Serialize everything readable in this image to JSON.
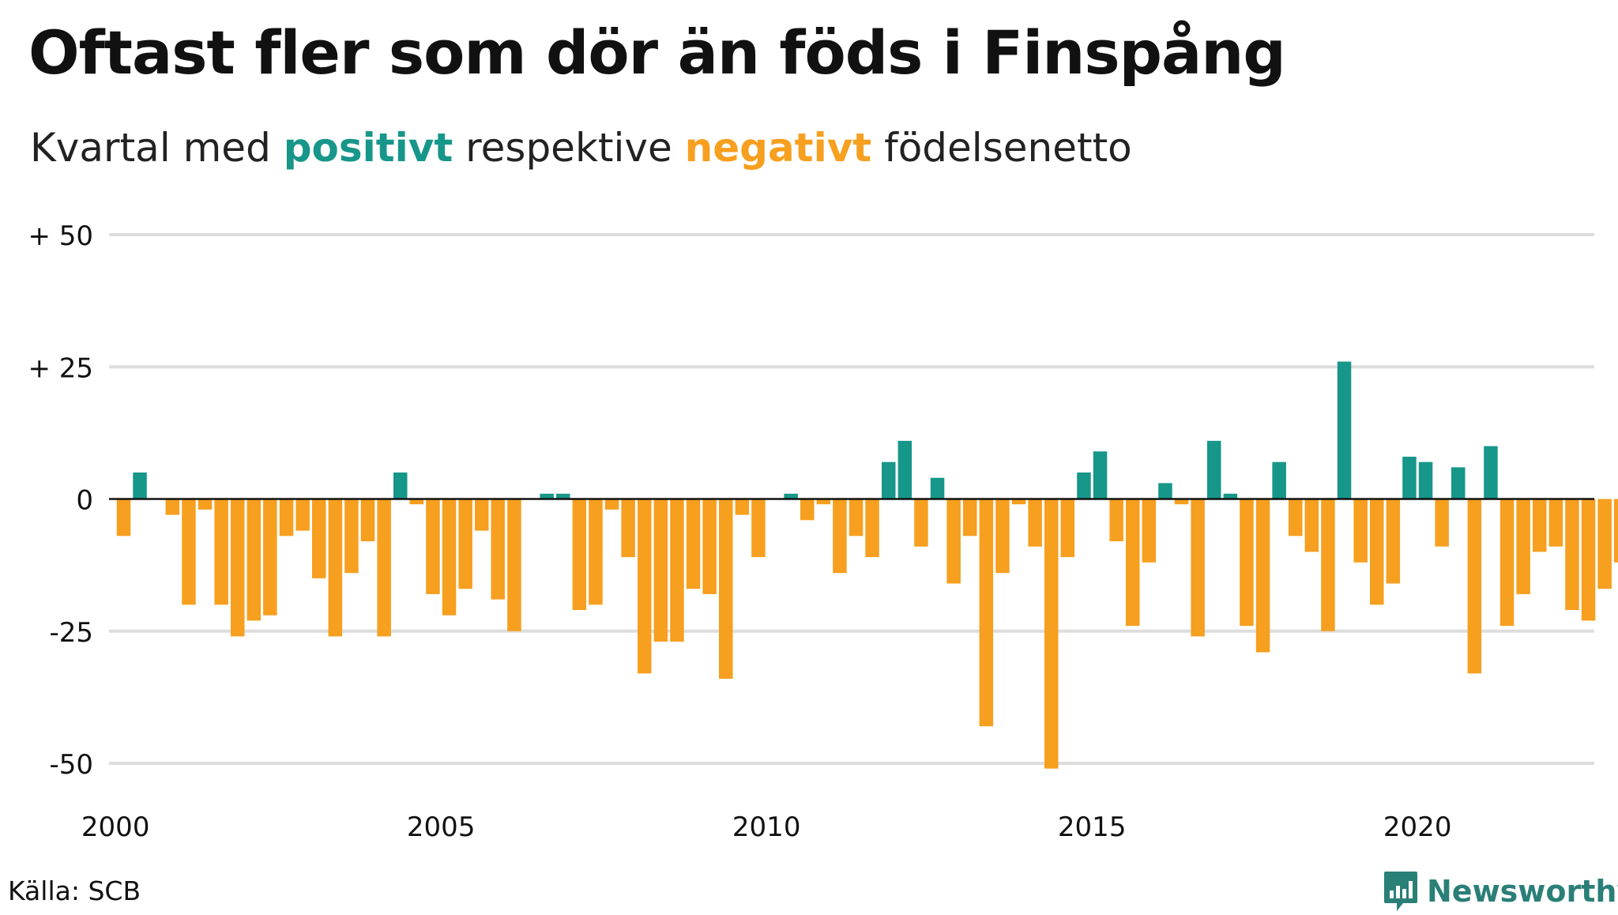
{
  "title": "Oftast fler som dör än föds i Finspång",
  "subtitle": {
    "prefix": "Kvartal med ",
    "positive_word": "positivt",
    "middle": " respektive ",
    "negative_word": "negativt",
    "suffix": " födelsenetto"
  },
  "source": "Källa: SCB",
  "brand": "Newsworthy",
  "colors": {
    "positive": "#17968a",
    "negative": "#f79f1f",
    "grid": "#dddddd",
    "zero_line": "#111111",
    "brand": "#2a7f77"
  },
  "chart_data": {
    "type": "bar",
    "title": "Oftast fler som dör än föds i Finspång",
    "subtitle": "Kvartal med positivt respektive negativt födelsenetto",
    "xlabel": "",
    "ylabel": "",
    "ylim": [
      -50,
      50
    ],
    "yticks": [
      {
        "value": 50,
        "label": "+ 50"
      },
      {
        "value": 25,
        "label": "+ 25"
      },
      {
        "value": 0,
        "label": "0"
      },
      {
        "value": -25,
        "label": "-25"
      },
      {
        "value": -50,
        "label": "-50"
      }
    ],
    "xticks": [
      "2000",
      "2005",
      "2010",
      "2015",
      "2020"
    ],
    "start": "2000 Q1",
    "grid": true,
    "values": [
      -7,
      5,
      0,
      -3,
      -20,
      -2,
      -20,
      -26,
      -23,
      -22,
      -7,
      -6,
      -15,
      -26,
      -14,
      -8,
      -26,
      5,
      -1,
      -18,
      -22,
      -17,
      -6,
      -19,
      -25,
      0,
      1,
      1,
      -21,
      -20,
      -2,
      -11,
      -33,
      -27,
      -27,
      -17,
      -18,
      -34,
      -3,
      -11,
      0,
      1,
      -4,
      -1,
      -14,
      -7,
      -11,
      7,
      11,
      -9,
      4,
      -16,
      -7,
      -43,
      -14,
      -1,
      -9,
      -51,
      -11,
      5,
      9,
      -8,
      -24,
      -12,
      3,
      -1,
      -26,
      11,
      1,
      -24,
      -29,
      7,
      -7,
      -10,
      -25,
      26,
      -12,
      -20,
      -16,
      8,
      7,
      -9,
      6,
      -33,
      10,
      -24,
      -18,
      -10,
      -9,
      -21,
      -23,
      -17,
      -12
    ]
  }
}
